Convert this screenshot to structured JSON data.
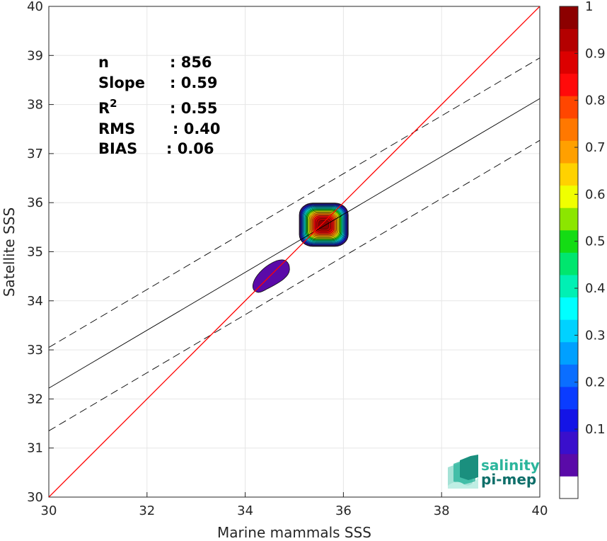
{
  "chart_data": {
    "type": "contour-scatter",
    "xlabel": "Marine mammals SSS",
    "ylabel": "Satellite SSS",
    "xlim": [
      30,
      40
    ],
    "ylim": [
      30,
      40
    ],
    "x_ticks": [
      "30",
      "32",
      "34",
      "36",
      "38",
      "40"
    ],
    "y_ticks": [
      "30",
      "31",
      "32",
      "33",
      "34",
      "35",
      "36",
      "37",
      "38",
      "39",
      "40"
    ],
    "grid": true,
    "stats": [
      {
        "label": "n",
        "value": ": 856"
      },
      {
        "label": "Slope",
        "value": ": 0.59"
      },
      {
        "label": "R",
        "sup": "2",
        "value": ": 0.55"
      },
      {
        "label": "RMS",
        "value": ": 0.40"
      },
      {
        "label": "BIAS",
        "value": ": 0.06"
      }
    ],
    "lines": {
      "identity": {
        "x": [
          30,
          40
        ],
        "y": [
          30,
          40
        ],
        "color": "#ff0000"
      },
      "fit": {
        "x": [
          30,
          40
        ],
        "y": [
          32.22,
          38.12
        ],
        "color": "#000000"
      },
      "fit_upper": {
        "x": [
          30,
          40
        ],
        "y": [
          33.05,
          38.95
        ],
        "color": "#000000",
        "dash": true
      },
      "fit_lower": {
        "x": [
          30,
          40
        ],
        "y": [
          31.35,
          37.27
        ],
        "color": "#000000",
        "dash": true
      }
    },
    "density_peaks": [
      {
        "x": 35.6,
        "y": 35.55,
        "level_max": 1.0
      },
      {
        "x": 34.5,
        "y": 34.5,
        "level_max": 0.1
      }
    ],
    "colorbar": {
      "ticks": [
        "0.1",
        "0.2",
        "0.3",
        "0.4",
        "0.5",
        "0.6",
        "0.7",
        "0.8",
        "0.9",
        "1"
      ],
      "tick_values": [
        0.1,
        0.2,
        0.3,
        0.4,
        0.5,
        0.6,
        0.7,
        0.8,
        0.9,
        1.0
      ],
      "colors": [
        "#ffffff",
        "#5a0aa8",
        "#3a0fcc",
        "#1414e6",
        "#0a3cff",
        "#0a6eff",
        "#00a0ff",
        "#00d2ff",
        "#00ffff",
        "#00f0b4",
        "#00e66e",
        "#14dc14",
        "#8ce600",
        "#f0ff00",
        "#ffd200",
        "#ffa000",
        "#ff7800",
        "#ff4600",
        "#ff0a0a",
        "#dc0000",
        "#b40000",
        "#8c0000"
      ]
    }
  },
  "logo": {
    "line1": "salinity",
    "line2": "pi-mep"
  }
}
